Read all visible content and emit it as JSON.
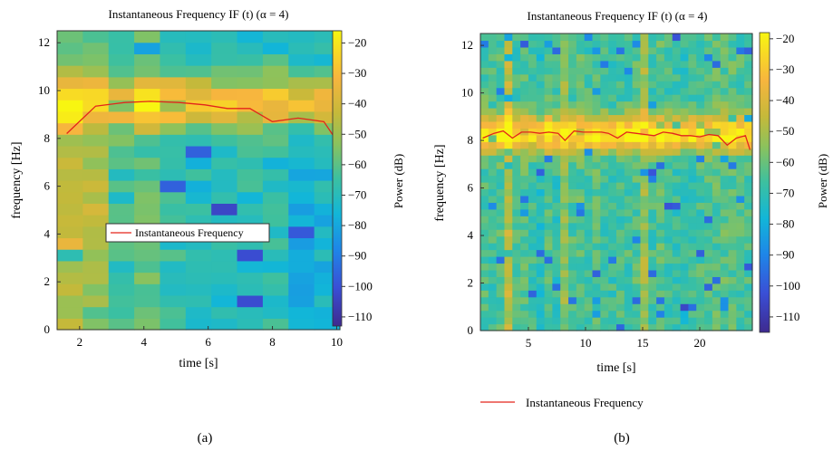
{
  "chart_data": [
    {
      "type": "heatmap",
      "panel_label": "(a)",
      "title": "Instantaneous Frequency IF (t) (α = 4)",
      "xlabel": "time [s]",
      "ylabel": "frequency [Hz]",
      "xlim": [
        1.3,
        10.1
      ],
      "ylim": [
        0,
        12.5
      ],
      "xticks": [
        "2",
        "4",
        "6",
        "8",
        "10"
      ],
      "yticks": [
        "0",
        "2",
        "4",
        "6",
        "8",
        "10",
        "12"
      ],
      "colorbar": {
        "label": "Power (dB)",
        "range": [
          -113,
          -16
        ],
        "ticks": [
          "-20",
          "-30",
          "-40",
          "-50",
          "-60",
          "-70",
          "-80",
          "-90",
          "-100",
          "-110"
        ]
      },
      "legend": {
        "entries": [
          "Instantaneous Frequency"
        ],
        "placement": "inside, center-left"
      },
      "series": [
        {
          "name": "Instantaneous Frequency",
          "color": "#e3241b",
          "x": [
            1.6,
            2.5,
            3.4,
            4.2,
            5.1,
            5.9,
            6.6,
            7.3,
            8.0,
            8.8,
            9.6,
            10.0
          ],
          "y": [
            8.2,
            9.35,
            9.5,
            9.55,
            9.5,
            9.4,
            9.25,
            9.25,
            8.7,
            8.85,
            8.7,
            7.9
          ]
        }
      ]
    },
    {
      "type": "heatmap",
      "panel_label": "(b)",
      "title": "Instantaneous Frequency IF (t) (α = 4)",
      "xlabel": "time [s]",
      "ylabel": "frequency [Hz]",
      "xlim": [
        0.8,
        24.6
      ],
      "ylim": [
        0,
        12.5
      ],
      "xticks": [
        "5",
        "10",
        "15",
        "20"
      ],
      "yticks": [
        "0",
        "2",
        "4",
        "6",
        "8",
        "10",
        "12"
      ],
      "colorbar": {
        "label": "Power (dB)",
        "range": [
          -115,
          -18
        ],
        "ticks": [
          "-20",
          "-30",
          "-40",
          "-50",
          "-60",
          "-70",
          "-80",
          "-90",
          "-100",
          "-110"
        ]
      },
      "legend": {
        "entries": [
          "Instantaneous Frequency"
        ],
        "placement": "below plot"
      },
      "series": [
        {
          "name": "Instantaneous Frequency",
          "color": "#e3241b",
          "x": [
            1.0,
            2.0,
            2.8,
            3.6,
            4.4,
            5.2,
            6.0,
            6.8,
            7.6,
            8.2,
            9.0,
            9.8,
            10.6,
            11.4,
            12.0,
            12.8,
            13.6,
            14.4,
            15.2,
            16.0,
            16.8,
            17.6,
            18.4,
            19.2,
            20.0,
            20.8,
            21.6,
            22.4,
            23.2,
            24.0,
            24.4
          ],
          "y": [
            8.1,
            8.3,
            8.4,
            8.1,
            8.35,
            8.35,
            8.3,
            8.35,
            8.3,
            8.0,
            8.4,
            8.35,
            8.35,
            8.35,
            8.3,
            8.1,
            8.35,
            8.3,
            8.25,
            8.2,
            8.35,
            8.3,
            8.2,
            8.2,
            8.15,
            8.25,
            8.2,
            7.8,
            8.1,
            8.2,
            7.6
          ]
        }
      ]
    }
  ]
}
